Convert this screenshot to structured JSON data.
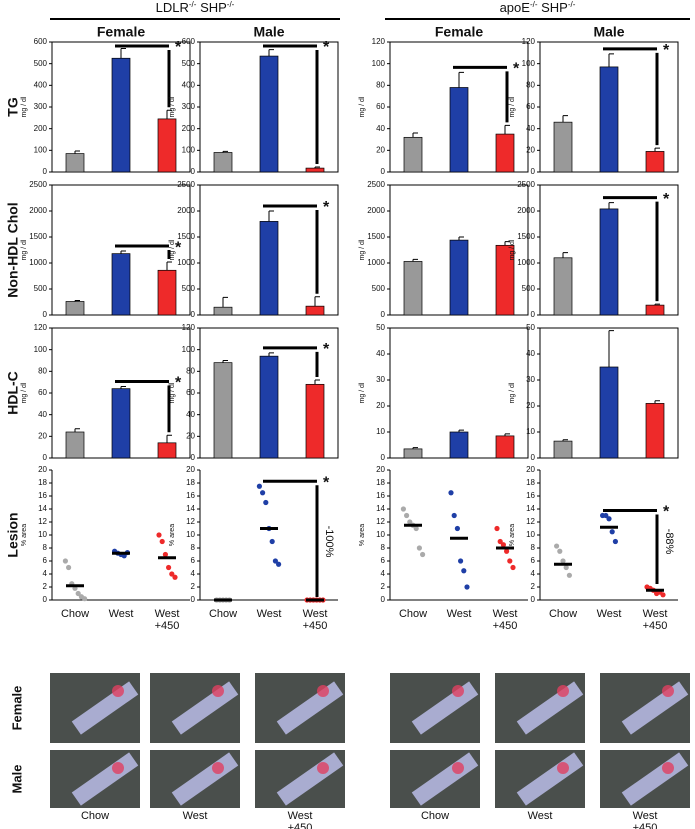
{
  "header": {
    "groups": [
      {
        "parts": [
          "LDLR",
          "-/-",
          " SHP",
          "-/-"
        ]
      },
      {
        "parts": [
          "apoE",
          "-/-",
          " SHP",
          "-/-"
        ]
      }
    ],
    "columns": [
      "Female",
      "Male",
      "Female",
      "Male"
    ],
    "rows": [
      "TG",
      "Non-HDL Chol",
      "HDL-C",
      "Lesion"
    ]
  },
  "chart_data": [
    {
      "type": "bar",
      "ylabel": "mg / dl",
      "ylim": [
        0,
        600
      ],
      "yticks": [
        0,
        100,
        200,
        300,
        400,
        500,
        600
      ],
      "colors": [
        "#999999",
        "#1f3fa6",
        "#ee2a2a"
      ],
      "values": [
        85,
        525,
        245
      ],
      "errors": [
        12,
        45,
        40
      ],
      "annotation": "*"
    },
    {
      "type": "bar",
      "ylabel": "mg / dl",
      "ylim": [
        0,
        600
      ],
      "yticks": [
        0,
        100,
        200,
        300,
        400,
        500,
        600
      ],
      "colors": [
        "#999999",
        "#1f3fa6",
        "#ee2a2a"
      ],
      "values": [
        90,
        535,
        18
      ],
      "errors": [
        5,
        30,
        5
      ],
      "annotation": "*"
    },
    {
      "type": "bar",
      "ylabel": "mg / dl",
      "ylim": [
        0,
        120
      ],
      "yticks": [
        0,
        20,
        40,
        60,
        80,
        100,
        120
      ],
      "colors": [
        "#999999",
        "#1f3fa6",
        "#ee2a2a"
      ],
      "values": [
        32,
        78,
        35
      ],
      "errors": [
        4,
        14,
        8
      ],
      "annotation": "*"
    },
    {
      "type": "bar",
      "ylabel": "mg / dl",
      "ylim": [
        0,
        120
      ],
      "yticks": [
        0,
        20,
        40,
        60,
        80,
        100,
        120
      ],
      "colors": [
        "#999999",
        "#1f3fa6",
        "#ee2a2a"
      ],
      "values": [
        46,
        97,
        19
      ],
      "errors": [
        6,
        12,
        3
      ],
      "annotation": "*"
    },
    {
      "type": "bar",
      "ylabel": "mg / dl",
      "ylim": [
        0,
        2500
      ],
      "yticks": [
        0,
        500,
        1000,
        1500,
        2000,
        2500
      ],
      "colors": [
        "#999999",
        "#1f3fa6",
        "#ee2a2a"
      ],
      "values": [
        260,
        1180,
        860
      ],
      "errors": [
        20,
        50,
        160
      ],
      "annotation": "*"
    },
    {
      "type": "bar",
      "ylabel": "mg / dl",
      "ylim": [
        0,
        2500
      ],
      "yticks": [
        0,
        500,
        1000,
        1500,
        2000,
        2500
      ],
      "colors": [
        "#999999",
        "#1f3fa6",
        "#ee2a2a"
      ],
      "values": [
        150,
        1800,
        170
      ],
      "errors": [
        190,
        200,
        180
      ],
      "annotation": "*"
    },
    {
      "type": "bar",
      "ylabel": "mg / dl",
      "ylim": [
        0,
        2500
      ],
      "yticks": [
        0,
        500,
        1000,
        1500,
        2000,
        2500
      ],
      "colors": [
        "#999999",
        "#1f3fa6",
        "#ee2a2a"
      ],
      "values": [
        1030,
        1440,
        1340
      ],
      "errors": [
        40,
        60,
        70
      ]
    },
    {
      "type": "bar",
      "ylabel": "mg / dl",
      "ylim": [
        0,
        2500
      ],
      "yticks": [
        0,
        500,
        1000,
        1500,
        2000,
        2500
      ],
      "colors": [
        "#999999",
        "#1f3fa6",
        "#ee2a2a"
      ],
      "values": [
        1100,
        2040,
        190
      ],
      "errors": [
        100,
        120,
        20
      ],
      "annotation": "*"
    },
    {
      "type": "bar",
      "ylabel": "mg / dl",
      "ylim": [
        0,
        120
      ],
      "yticks": [
        0,
        20,
        40,
        60,
        80,
        100,
        120
      ],
      "colors": [
        "#999999",
        "#1f3fa6",
        "#ee2a2a"
      ],
      "values": [
        24,
        64,
        14
      ],
      "errors": [
        3,
        2,
        7
      ],
      "annotation": "*"
    },
    {
      "type": "bar",
      "ylabel": "mg / dl",
      "ylim": [
        0,
        120
      ],
      "yticks": [
        0,
        20,
        40,
        60,
        80,
        100,
        120
      ],
      "colors": [
        "#999999",
        "#1f3fa6",
        "#ee2a2a"
      ],
      "values": [
        88,
        94,
        68
      ],
      "errors": [
        2,
        3,
        4
      ],
      "annotation": "*"
    },
    {
      "type": "bar",
      "ylabel": "mg / dl",
      "ylim": [
        0,
        50
      ],
      "yticks": [
        0,
        10,
        20,
        30,
        40,
        50
      ],
      "colors": [
        "#999999",
        "#1f3fa6",
        "#ee2a2a"
      ],
      "values": [
        3.5,
        10,
        8.5
      ],
      "errors": [
        0.5,
        0.7,
        0.8
      ]
    },
    {
      "type": "bar",
      "ylabel": "mg / dl",
      "ylim": [
        0,
        50
      ],
      "yticks": [
        0,
        10,
        20,
        30,
        40,
        50
      ],
      "colors": [
        "#999999",
        "#1f3fa6",
        "#ee2a2a"
      ],
      "values": [
        6.5,
        35,
        21
      ],
      "errors": [
        0.5,
        14,
        1
      ]
    },
    {
      "type": "dot",
      "ylabel": "% area",
      "ylim": [
        0,
        20
      ],
      "yticks": [
        0,
        2,
        4,
        6,
        8,
        10,
        12,
        14,
        16,
        18,
        20
      ],
      "categories": [
        "Chow",
        "West",
        "West +450"
      ],
      "colors": [
        "#aaaaaa",
        "#1f3fa6",
        "#ee2a2a"
      ],
      "points": [
        [
          6,
          5,
          2.5,
          1.8,
          1,
          0.5,
          0.2
        ],
        [
          7.5,
          7.2,
          7,
          6.8,
          7.3
        ],
        [
          10,
          9,
          7,
          5,
          4,
          3.5
        ]
      ],
      "means": [
        2.2,
        7.2,
        6.5
      ]
    },
    {
      "type": "dot",
      "ylabel": "% area",
      "ylim": [
        0,
        20
      ],
      "yticks": [
        0,
        2,
        4,
        6,
        8,
        10,
        12,
        14,
        16,
        18,
        20
      ],
      "categories": [
        "Chow",
        "West",
        "West +450"
      ],
      "colors": [
        "#aaaaaa",
        "#1f3fa6",
        "#ee2a2a"
      ],
      "points": [
        [
          0,
          0,
          0,
          0,
          0
        ],
        [
          17.5,
          16.5,
          15,
          11,
          9,
          6,
          5.5
        ],
        [
          0,
          0,
          0,
          0,
          0,
          0
        ]
      ],
      "means": [
        0,
        11,
        0
      ],
      "annotation": "*",
      "percent": "-100%"
    },
    {
      "type": "dot",
      "ylabel": "% area",
      "ylim": [
        0,
        20
      ],
      "yticks": [
        0,
        2,
        4,
        6,
        8,
        10,
        12,
        14,
        16,
        18,
        20
      ],
      "categories": [
        "Chow",
        "West",
        "West +450"
      ],
      "colors": [
        "#aaaaaa",
        "#1f3fa6",
        "#ee2a2a"
      ],
      "points": [
        [
          14,
          13,
          12,
          11.5,
          11,
          8,
          7
        ],
        [
          16.5,
          13,
          11,
          6,
          4.5,
          2
        ],
        [
          11,
          9,
          8.5,
          7.5,
          6,
          5
        ]
      ],
      "means": [
        11.5,
        9.5,
        8
      ]
    },
    {
      "type": "dot",
      "ylabel": "% area",
      "ylim": [
        0,
        20
      ],
      "yticks": [
        0,
        2,
        4,
        6,
        8,
        10,
        12,
        14,
        16,
        18,
        20
      ],
      "categories": [
        "Chow",
        "West",
        "West +450"
      ],
      "colors": [
        "#aaaaaa",
        "#1f3fa6",
        "#ee2a2a"
      ],
      "points": [
        [
          8.3,
          7.5,
          6,
          5,
          3.8
        ],
        [
          13,
          13,
          12.5,
          10.5,
          9
        ],
        [
          2,
          1.8,
          1.5,
          1,
          1.2,
          0.8
        ]
      ],
      "means": [
        5.5,
        11.2,
        1.5
      ],
      "annotation": "*",
      "percent": "-88%"
    }
  ],
  "photos": {
    "rows": [
      "Female",
      "Male"
    ],
    "labels": [
      "Chow",
      "West",
      "West +450",
      "Chow",
      "West",
      "West +450"
    ]
  }
}
